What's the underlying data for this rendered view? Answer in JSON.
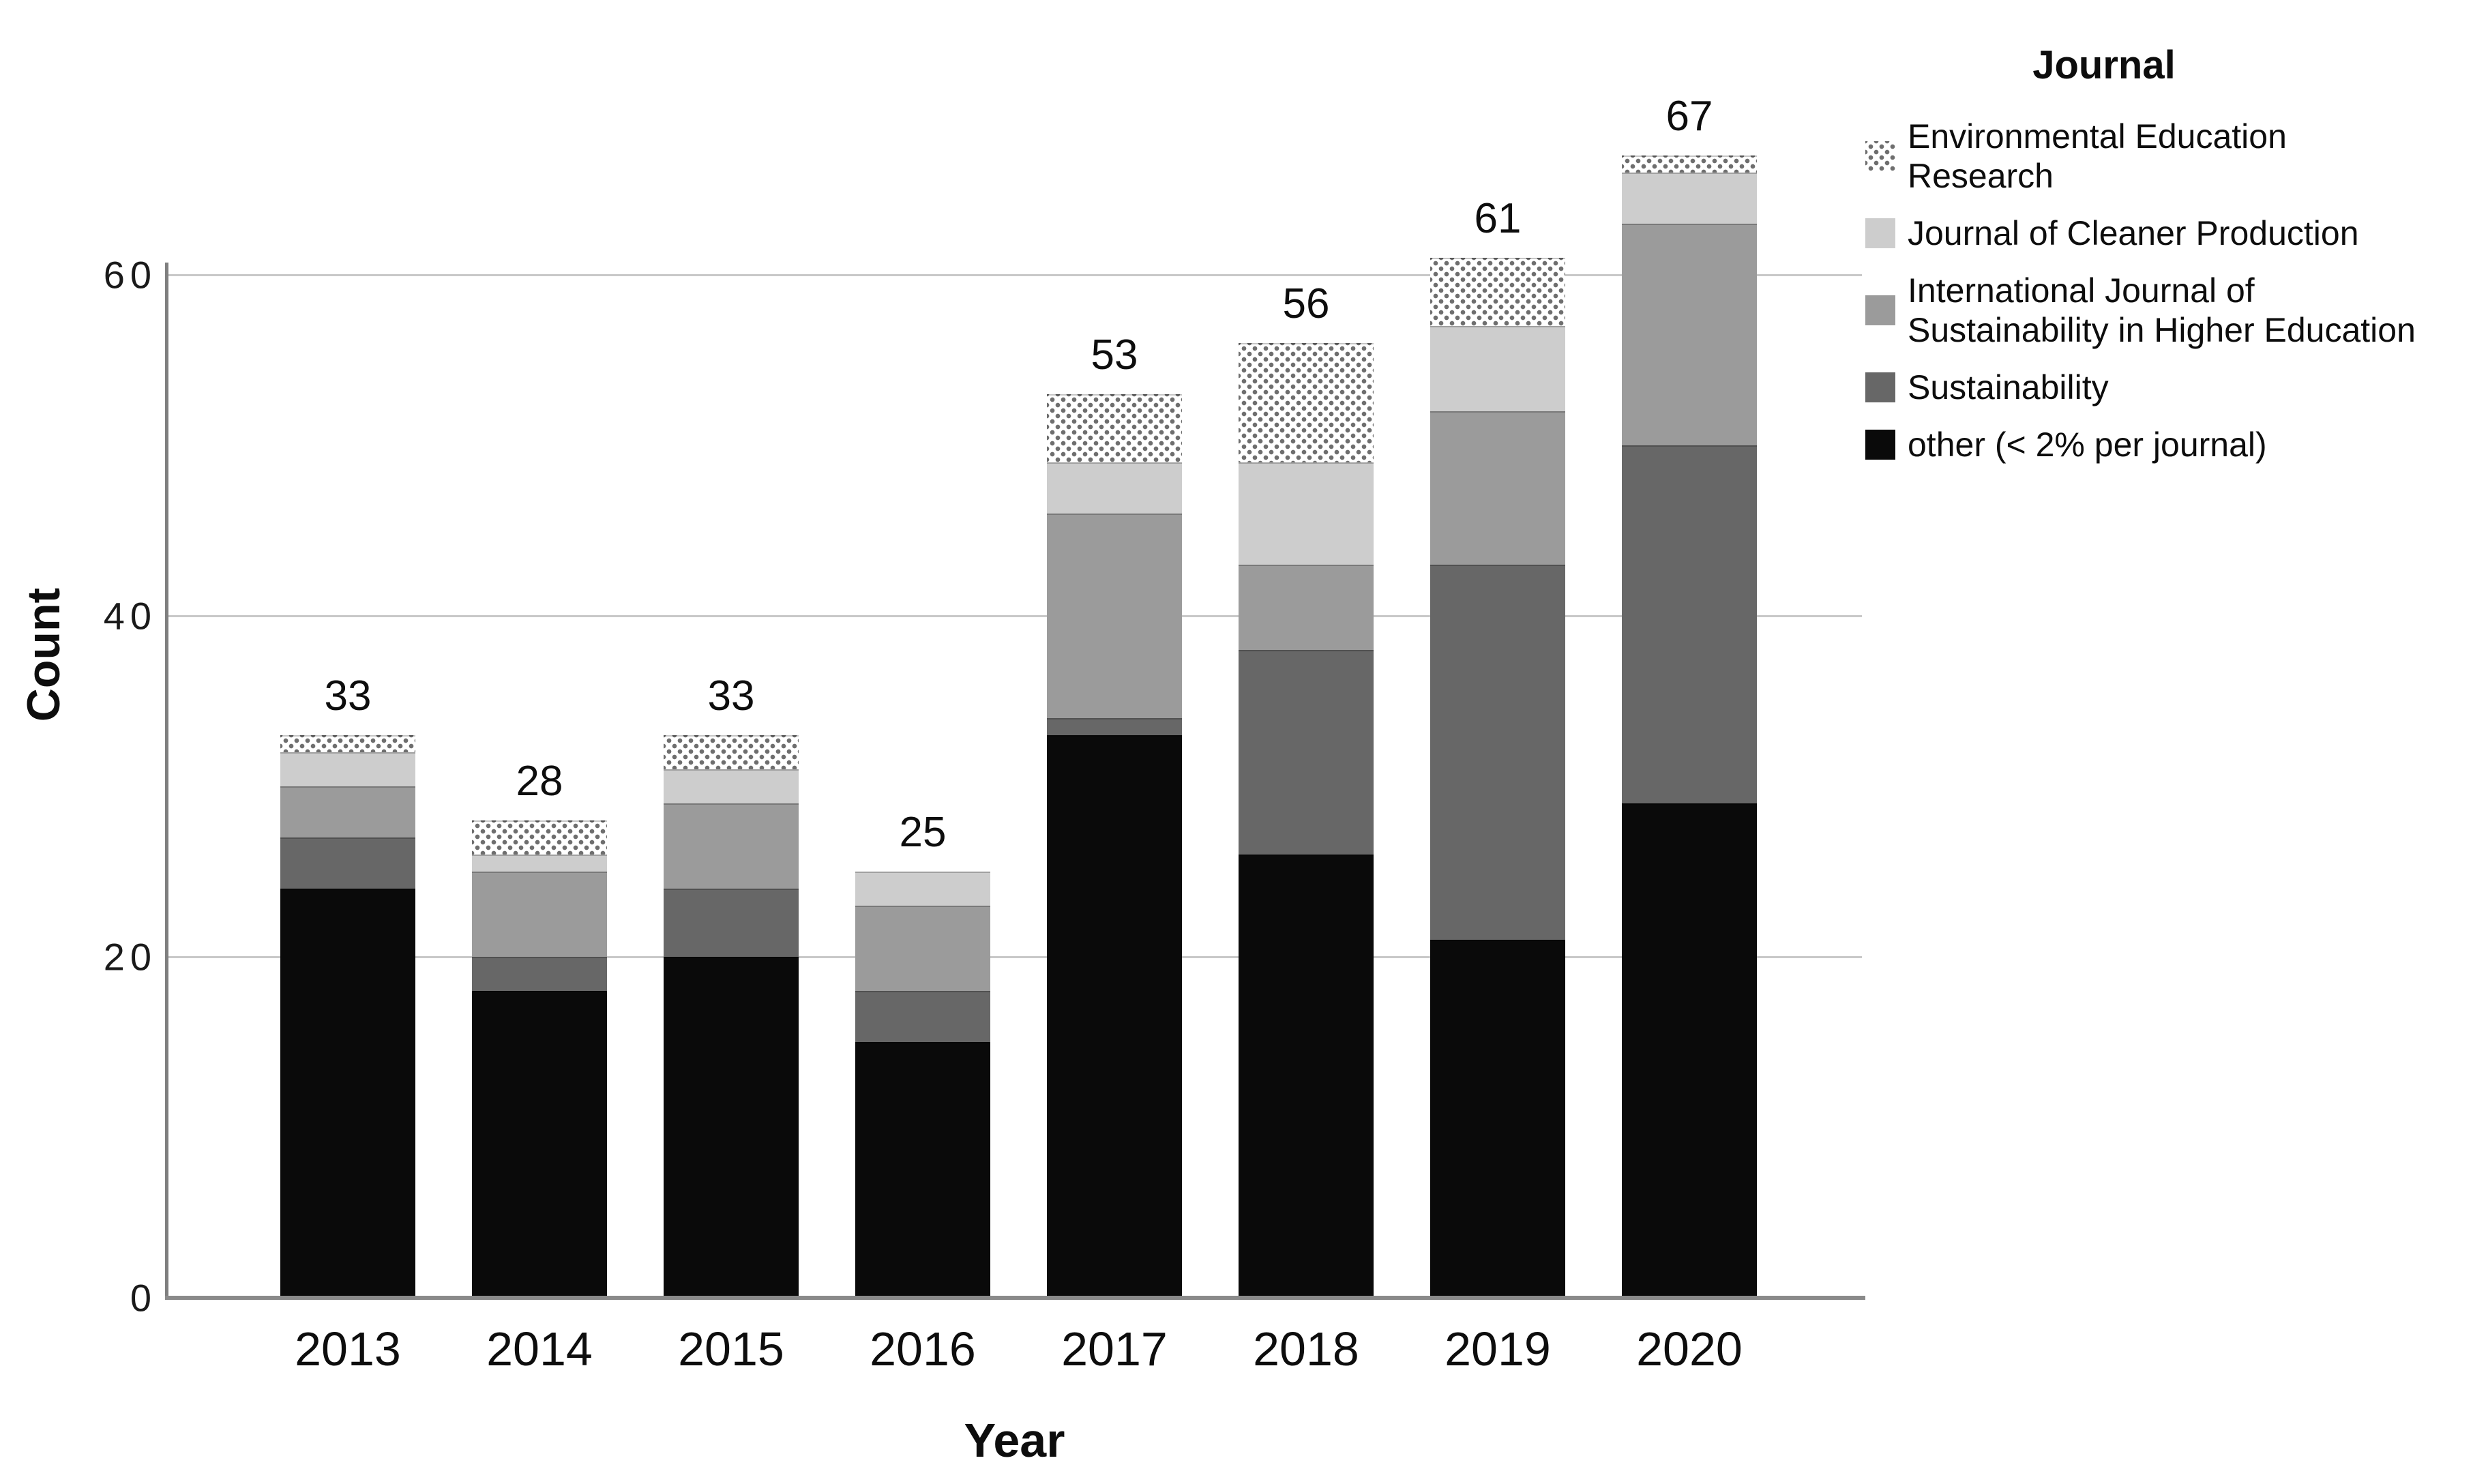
{
  "chart_data": {
    "type": "bar",
    "stacked": true,
    "orientation": "vertical",
    "title": "",
    "xlabel": "Year",
    "ylabel": "Count",
    "categories": [
      "2013",
      "2014",
      "2015",
      "2016",
      "2017",
      "2018",
      "2019",
      "2020"
    ],
    "totals": [
      33,
      28,
      33,
      25,
      53,
      56,
      61,
      67
    ],
    "series": [
      {
        "name": "other (< 2% per journal)",
        "color": "#0a0a0a",
        "pattern": "solid",
        "values": [
          24,
          18,
          20,
          15,
          33,
          26,
          21,
          29
        ]
      },
      {
        "name": "Sustainability",
        "color": "#676767",
        "pattern": "solid",
        "values": [
          3,
          2,
          4,
          3,
          1,
          12,
          22,
          21
        ]
      },
      {
        "name": "International Journal of Sustainability in Higher Education",
        "color": "#9b9b9b",
        "pattern": "solid",
        "values": [
          3,
          5,
          5,
          5,
          12,
          5,
          9,
          13
        ]
      },
      {
        "name": "Journal of Cleaner Production",
        "color": "#cdcdcd",
        "pattern": "solid",
        "values": [
          2,
          1,
          2,
          2,
          3,
          6,
          5,
          3
        ]
      },
      {
        "name": "Environmental Education Research",
        "color": "#ffffff",
        "pattern": "dots",
        "dot_color": "#6e6e6e",
        "values": [
          1,
          2,
          2,
          0,
          4,
          7,
          4,
          1
        ]
      }
    ],
    "y_ticks": [
      0,
      20,
      40,
      60
    ],
    "ylim": [
      0,
      70
    ],
    "grid": "horizontal",
    "gridline_color": "#c8c8c8",
    "axis_color": "#7f7f7f",
    "legend_title": "Journal",
    "legend_position": "right"
  },
  "legend": {
    "title": "Journal",
    "entries": [
      {
        "series_index": 4,
        "label_lines": [
          "Environmental Education",
          "Research"
        ]
      },
      {
        "series_index": 3,
        "label_lines": [
          "Journal of Cleaner Production"
        ]
      },
      {
        "series_index": 2,
        "label_lines": [
          "International Journal of",
          "Sustainability in Higher Education"
        ]
      },
      {
        "series_index": 1,
        "label_lines": [
          "Sustainability"
        ]
      },
      {
        "series_index": 0,
        "label_lines": [
          "other (< 2% per journal)"
        ]
      }
    ]
  },
  "axes": {
    "y_tick_labels": [
      "0",
      "20",
      "40",
      "60"
    ],
    "x_tick_labels": [
      "2013",
      "2014",
      "2015",
      "2016",
      "2017",
      "2018",
      "2019",
      "2020"
    ]
  }
}
